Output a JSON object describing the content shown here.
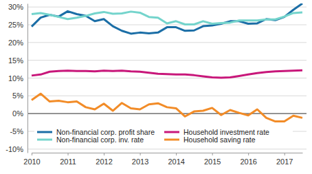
{
  "chart_data": {
    "type": "line",
    "categories": [
      "2010",
      null,
      null,
      null,
      "2011",
      null,
      null,
      null,
      "2012",
      null,
      null,
      null,
      "2013",
      null,
      null,
      null,
      "2014",
      null,
      null,
      null,
      "2015",
      null,
      null,
      null,
      "2016",
      null,
      null,
      null,
      "2017",
      null,
      null
    ],
    "series": [
      {
        "name": "Non-financial corp. profit share",
        "color": "#1b6ea6",
        "values": [
          24.5,
          27,
          27.8,
          27.3,
          28.8,
          28,
          27.5,
          26,
          26.6,
          24.6,
          23.3,
          22.5,
          22.8,
          22.6,
          22.8,
          24.3,
          24.3,
          23.3,
          23.4,
          24.6,
          24.8,
          25.3,
          26,
          26,
          25.3,
          25.4,
          26.6,
          26.3,
          27.2,
          29.2,
          31
        ]
      },
      {
        "name": "Non-financial corp. inv. rate",
        "color": "#74d4cc",
        "values": [
          28,
          28.3,
          27.8,
          27.2,
          26.6,
          27,
          27.5,
          28.2,
          28.6,
          28.1,
          28.2,
          28.7,
          28.4,
          27.2,
          27,
          25.4,
          26,
          25.1,
          25.1,
          26,
          25.3,
          25.5,
          25.6,
          26.2,
          26.2,
          26.2,
          26.5,
          26.5,
          27.3,
          28.3,
          28.5
        ]
      },
      {
        "name": "Household investment rate",
        "color": "#c8177a",
        "values": [
          10.7,
          11,
          11.8,
          12,
          12.1,
          12,
          12,
          11.9,
          12.1,
          12,
          12.1,
          11.9,
          11.8,
          11.5,
          11.2,
          11.1,
          11,
          11,
          10.8,
          10.5,
          10.2,
          10.1,
          10.2,
          10.6,
          11,
          11.4,
          11.7,
          11.9,
          12,
          12.1,
          12.2
        ]
      },
      {
        "name": "Household saving rate",
        "color": "#f28c28",
        "values": [
          3.8,
          5.6,
          3.4,
          3.6,
          3.2,
          3.4,
          1.8,
          1.2,
          2.8,
          0.8,
          3,
          1.5,
          1.2,
          2.6,
          2.9,
          1.8,
          1.5,
          -0.8,
          0.6,
          0.8,
          1.6,
          -0.4,
          1,
          0.2,
          -0.5,
          1.2,
          -1.2,
          -2.2,
          -2.2,
          -0.6,
          -1.2
        ]
      }
    ],
    "ylim": [
      -11,
      31
    ],
    "yticks": [
      {
        "value": -10,
        "label": "-10%"
      },
      {
        "value": -5,
        "label": "-5%"
      },
      {
        "value": 0,
        "label": "0%"
      },
      {
        "value": 5,
        "label": "5%"
      },
      {
        "value": 10,
        "label": "10%"
      },
      {
        "value": 15,
        "label": "15%"
      },
      {
        "value": 20,
        "label": "20%"
      },
      {
        "value": 25,
        "label": "25%"
      },
      {
        "value": 30,
        "label": "30%"
      }
    ],
    "grid": true,
    "legend": "bottom"
  }
}
